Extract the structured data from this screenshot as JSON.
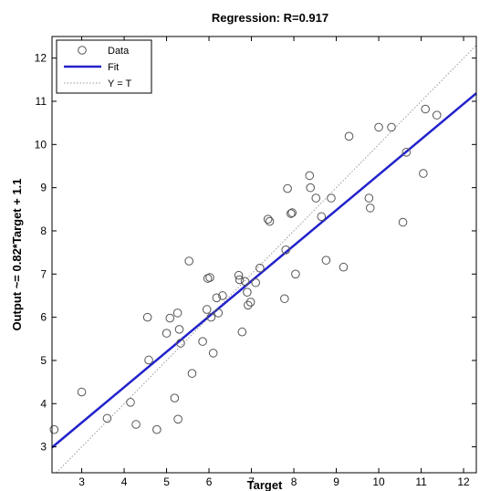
{
  "chart_data": {
    "type": "scatter",
    "title": "Regression: R=0.917",
    "xlabel": "Target",
    "ylabel": "Output ~= 0.82*Target + 1.1",
    "xlim": [
      2.3,
      12.3
    ],
    "ylim": [
      2.4,
      12.5
    ],
    "x_ticks": [
      3,
      4,
      5,
      6,
      7,
      8,
      9,
      10,
      11,
      12
    ],
    "y_ticks": [
      3,
      4,
      5,
      6,
      7,
      8,
      9,
      10,
      11,
      12
    ],
    "grid": false,
    "legend_position": "top-left",
    "legend": [
      {
        "label": "Data",
        "kind": "marker",
        "color": "#555555"
      },
      {
        "label": "Fit",
        "kind": "line",
        "color": "#2222cc"
      },
      {
        "label": "Y = T",
        "kind": "dotted",
        "color": "#999999"
      }
    ],
    "fit": {
      "slope": 0.82,
      "intercept": 1.1,
      "color": "#2222cc"
    },
    "identity_line": {
      "color": "#999999"
    },
    "marker_color": "#555555",
    "series": [
      {
        "name": "Data",
        "points": [
          [
            2.35,
            3.4
          ],
          [
            3.0,
            4.27
          ],
          [
            3.6,
            3.66
          ],
          [
            4.15,
            4.03
          ],
          [
            4.28,
            3.52
          ],
          [
            4.55,
            6.0
          ],
          [
            4.58,
            5.01
          ],
          [
            4.77,
            3.4
          ],
          [
            5.0,
            5.63
          ],
          [
            5.08,
            5.98
          ],
          [
            5.19,
            4.13
          ],
          [
            5.26,
            6.1
          ],
          [
            5.27,
            3.64
          ],
          [
            5.3,
            5.72
          ],
          [
            5.33,
            5.4
          ],
          [
            5.53,
            7.3
          ],
          [
            5.6,
            4.7
          ],
          [
            5.85,
            5.44
          ],
          [
            5.95,
            6.18
          ],
          [
            5.97,
            6.9
          ],
          [
            6.02,
            6.92
          ],
          [
            6.05,
            6.0
          ],
          [
            6.1,
            5.17
          ],
          [
            6.18,
            6.45
          ],
          [
            6.22,
            6.1
          ],
          [
            6.32,
            6.5
          ],
          [
            6.7,
            6.97
          ],
          [
            6.72,
            6.87
          ],
          [
            6.78,
            5.66
          ],
          [
            6.85,
            6.83
          ],
          [
            6.9,
            6.58
          ],
          [
            6.92,
            6.28
          ],
          [
            6.98,
            6.35
          ],
          [
            7.1,
            6.8
          ],
          [
            7.2,
            7.14
          ],
          [
            7.39,
            8.27
          ],
          [
            7.43,
            8.22
          ],
          [
            7.78,
            6.43
          ],
          [
            7.81,
            7.56
          ],
          [
            7.85,
            8.98
          ],
          [
            7.93,
            8.4
          ],
          [
            7.96,
            8.42
          ],
          [
            8.04,
            7.0
          ],
          [
            8.37,
            9.28
          ],
          [
            8.39,
            9.0
          ],
          [
            8.52,
            8.76
          ],
          [
            8.65,
            8.33
          ],
          [
            8.76,
            7.32
          ],
          [
            8.88,
            8.76
          ],
          [
            9.17,
            7.16
          ],
          [
            9.3,
            10.19
          ],
          [
            9.77,
            8.76
          ],
          [
            9.8,
            8.53
          ],
          [
            10.0,
            10.4
          ],
          [
            10.3,
            10.4
          ],
          [
            10.57,
            8.2
          ],
          [
            10.65,
            9.82
          ],
          [
            11.05,
            9.33
          ],
          [
            11.1,
            10.82
          ],
          [
            11.37,
            10.68
          ]
        ]
      }
    ]
  }
}
